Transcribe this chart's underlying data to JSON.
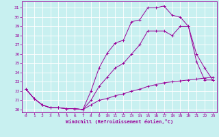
{
  "xlabel": "Windchill (Refroidissement éolien,°C)",
  "bg_color": "#c8f0f0",
  "line_color": "#990099",
  "xlim": [
    -0.5,
    23.5
  ],
  "ylim": [
    19.7,
    31.7
  ],
  "yticks": [
    20,
    21,
    22,
    23,
    24,
    25,
    26,
    27,
    28,
    29,
    30,
    31
  ],
  "xticks": [
    0,
    1,
    2,
    3,
    4,
    5,
    6,
    7,
    8,
    9,
    10,
    11,
    12,
    13,
    14,
    15,
    16,
    17,
    18,
    19,
    20,
    21,
    22,
    23
  ],
  "line1_x": [
    0,
    1,
    2,
    3,
    4,
    5,
    6,
    7,
    8,
    9,
    10,
    11,
    12,
    13,
    14,
    15,
    16,
    17,
    18,
    19,
    20,
    21,
    22,
    23
  ],
  "line1_y": [
    22.2,
    21.2,
    20.5,
    20.2,
    20.2,
    20.1,
    20.1,
    20.0,
    22.0,
    24.5,
    26.1,
    27.2,
    27.5,
    29.5,
    29.7,
    31.0,
    31.0,
    31.2,
    30.2,
    30.0,
    29.0,
    25.2,
    23.2,
    23.2
  ],
  "line2_x": [
    0,
    1,
    2,
    3,
    4,
    5,
    6,
    7,
    8,
    9,
    10,
    11,
    12,
    13,
    14,
    15,
    16,
    17,
    18,
    19,
    20,
    21,
    22,
    23
  ],
  "line2_y": [
    22.2,
    21.2,
    20.5,
    20.2,
    20.2,
    20.1,
    20.1,
    20.0,
    21.0,
    22.5,
    23.5,
    24.5,
    25.0,
    26.0,
    27.0,
    28.5,
    28.5,
    28.5,
    28.0,
    29.0,
    29.0,
    26.0,
    24.5,
    23.2
  ],
  "line3_x": [
    0,
    1,
    2,
    3,
    4,
    5,
    6,
    7,
    8,
    9,
    10,
    11,
    12,
    13,
    14,
    15,
    16,
    17,
    18,
    19,
    20,
    21,
    22,
    23
  ],
  "line3_y": [
    22.2,
    21.2,
    20.5,
    20.2,
    20.2,
    20.1,
    20.1,
    20.0,
    20.5,
    21.0,
    21.2,
    21.5,
    21.7,
    22.0,
    22.2,
    22.5,
    22.7,
    22.9,
    23.0,
    23.1,
    23.2,
    23.3,
    23.4,
    23.5
  ],
  "tick_fontsize": 4.5,
  "xlabel_fontsize": 5.0,
  "grid_color": "#ffffff",
  "grid_lw": 0.6,
  "line_lw": 0.7,
  "marker_size": 3.5,
  "marker_lw": 0.7
}
